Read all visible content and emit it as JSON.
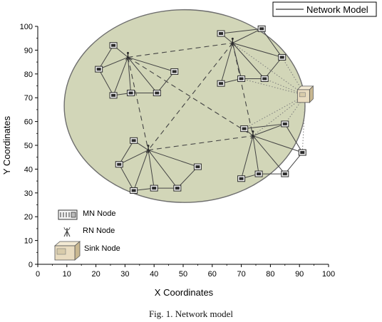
{
  "chart_data": {
    "type": "scatter",
    "title": "Network Model",
    "xlabel": "X Coordinates",
    "ylabel": "Y Coordinates",
    "xlim": [
      0,
      100
    ],
    "ylim": [
      0,
      100
    ],
    "xticks": [
      0,
      10,
      20,
      30,
      40,
      50,
      60,
      70,
      80,
      90,
      100
    ],
    "yticks": [
      0,
      10,
      20,
      30,
      40,
      50,
      60,
      70,
      80,
      90,
      100
    ],
    "grid": false,
    "legend_placement": "bottom-left",
    "legend": [
      "MN Node",
      "RN Node",
      "Sink Node"
    ],
    "colors": {
      "field_fill": "#d2d6b8",
      "field_stroke": "#6e6e6e",
      "node_dark": "#2b2b2b",
      "link": "#444444",
      "sink_link": "#7d7d7d",
      "sink_body": "#e9dcc0"
    },
    "field": {
      "center": [
        50.5,
        66.5
      ],
      "radius_x": 49,
      "radius_y": 30
    },
    "clusters": [
      {
        "rn": [
          31,
          87
        ],
        "mn": [
          [
            26,
            92
          ],
          [
            21,
            82
          ],
          [
            26,
            71
          ],
          [
            32,
            72
          ],
          [
            41,
            72
          ],
          [
            47,
            81
          ]
        ]
      },
      {
        "rn": [
          67,
          93
        ],
        "mn": [
          [
            63,
            97
          ],
          [
            77,
            99
          ],
          [
            84,
            87
          ],
          [
            78,
            78
          ],
          [
            70,
            78
          ],
          [
            63,
            76
          ]
        ]
      },
      {
        "rn": [
          38,
          48
        ],
        "mn": [
          [
            33,
            52
          ],
          [
            28,
            42
          ],
          [
            33,
            31
          ],
          [
            40,
            32
          ],
          [
            48,
            32
          ],
          [
            55,
            41
          ]
        ]
      },
      {
        "rn": [
          74,
          54
        ],
        "mn": [
          [
            71,
            57
          ],
          [
            85,
            59
          ],
          [
            91,
            47
          ],
          [
            85,
            38
          ],
          [
            76,
            38
          ],
          [
            70,
            36
          ]
        ]
      }
    ],
    "sink": [
      92,
      71
    ],
    "caption": "Fig. 1.   Network model"
  }
}
